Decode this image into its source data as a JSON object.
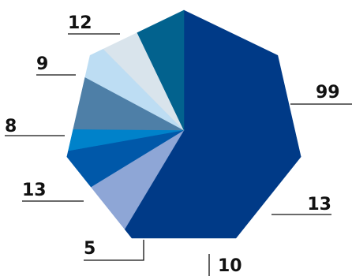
{
  "chart_data": {
    "type": "pie",
    "shape": "heptagon",
    "start_angle_deg": -90,
    "direction": "clockwise",
    "title": "",
    "legend": "none",
    "slices": [
      {
        "label": "99",
        "value": 99,
        "color": "#003A87"
      },
      {
        "label": "13",
        "value": 13,
        "color": "#8EA6D6"
      },
      {
        "label": "10",
        "value": 10,
        "color": "#0058A9"
      },
      {
        "label": "5",
        "value": 5,
        "color": "#0082CA"
      },
      {
        "label": "13",
        "value": 13,
        "color": "#4E7FA7"
      },
      {
        "label": "8",
        "value": 8,
        "color": "#BDDDF3"
      },
      {
        "label": "9",
        "value": 9,
        "color": "#D9E4EC"
      },
      {
        "label": "12",
        "value": 12,
        "color": "#02628E"
      }
    ]
  }
}
